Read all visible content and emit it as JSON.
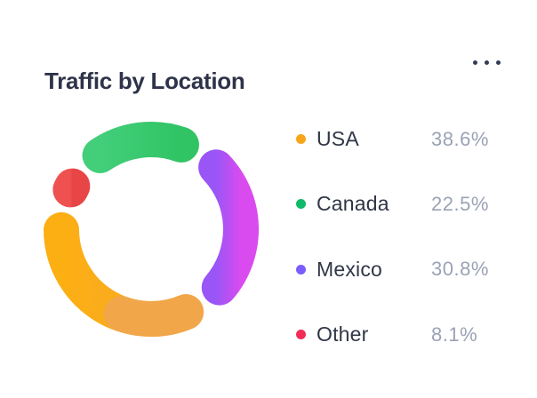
{
  "card": {
    "title": "Traffic by Location"
  },
  "menu": {
    "icon": "ellipsis-icon"
  },
  "colors": {
    "title_text": "#2e3349",
    "legend_label_text": "#303646",
    "legend_value_text": "#9ba2b6",
    "background": "#ffffff"
  },
  "chart_data": {
    "type": "pie",
    "subtype": "donut",
    "title": "Traffic by Location",
    "unit": "%",
    "legend_position": "right",
    "total": 100,
    "series": [
      {
        "label": "USA",
        "value": 38.6,
        "display": "38.6%",
        "dot_color": "#f9a51c",
        "arc_gradient": [
          "#fcaf12",
          "#f6a82d"
        ],
        "cap_overlay": {
          "color": "#f0a64d",
          "span_deg": 42
        }
      },
      {
        "label": "Canada",
        "value": 22.5,
        "display": "22.5%",
        "dot_color": "#0fb968",
        "arc_gradient": [
          "#43ce7a",
          "#30c464"
        ],
        "cap_overlay": null
      },
      {
        "label": "Mexico",
        "value": 30.8,
        "display": "30.8%",
        "dot_color": "#7c5cfc",
        "arc_gradient": [
          "#9a55f6",
          "#da4bef"
        ],
        "cap_overlay": null
      },
      {
        "label": "Other",
        "value": 8.1,
        "display": "8.1%",
        "dot_color": "#f02b56",
        "arc_gradient": [
          "#ee514f",
          "#e84646"
        ],
        "cap_overlay": null
      }
    ],
    "draw_order_clockwise": [
      "Canada",
      "Mexico",
      "USA",
      "Other"
    ],
    "start_angle_deg": -48,
    "segment_gap_deg": 4,
    "rounded_caps": true
  }
}
